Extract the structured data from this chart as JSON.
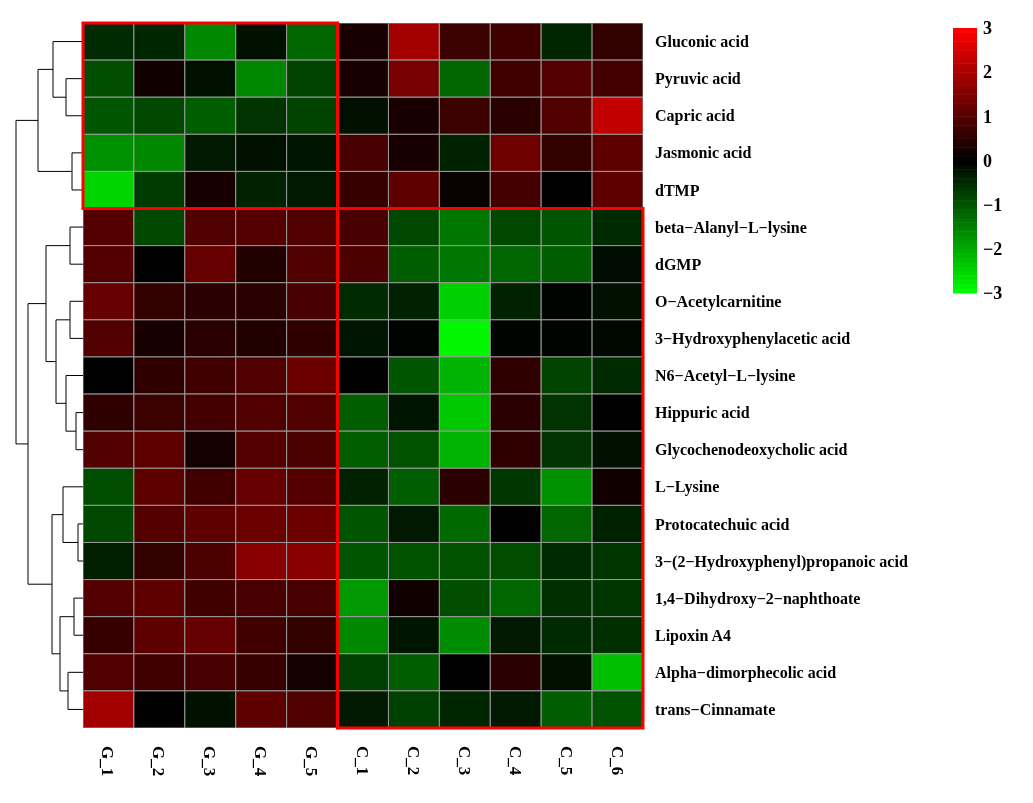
{
  "chart_data": {
    "type": "heatmap",
    "categories": [
      "G_1",
      "G_2",
      "G_3",
      "G_4",
      "G_5",
      "C_1",
      "C_2",
      "C_3",
      "C_4",
      "C_5",
      "C_6"
    ],
    "y_categories": [
      "Gluconic acid",
      "Pyruvic acid",
      "Capric acid",
      "Jasmonic acid",
      "dTMP",
      "beta−Alanyl−L−lysine",
      "dGMP",
      "O−Acetylcarnitine",
      "3−Hydroxyphenylacetic acid",
      "N6−Acetyl−L−lysine",
      "Hippuric acid",
      "Glycochenodeoxycholic acid",
      "L−Lysine",
      "Protocatechuic acid",
      "3−(2−Hydroxyphenyl)propanoic acid",
      "1,4−Dihydroxy−2−naphthoate",
      "Lipoxin A4",
      "Alpha−dimorphecolic acid",
      "trans−Cinnamate"
    ],
    "cells": [
      [
        -0.5,
        -0.45,
        -1.6,
        -0.2,
        -1.2,
        0.3,
        1.9,
        0.7,
        0.75,
        -0.45,
        0.6
      ],
      [
        -0.9,
        0.2,
        -0.2,
        -1.6,
        -0.8,
        0.3,
        1.4,
        -1.2,
        0.75,
        1.0,
        0.8
      ],
      [
        -1.0,
        -0.85,
        -1.1,
        -0.6,
        -0.8,
        -0.2,
        0.3,
        0.7,
        0.5,
        0.95,
        2.3
      ],
      [
        -1.7,
        -1.6,
        -0.3,
        -0.2,
        -0.25,
        0.85,
        0.3,
        -0.4,
        1.3,
        0.6,
        1.1
      ],
      [
        -2.5,
        -0.7,
        0.3,
        -0.4,
        -0.3,
        0.65,
        1.1,
        0.1,
        0.8,
        0.0,
        1.1
      ],
      [
        1.0,
        -0.85,
        0.95,
        1.0,
        0.95,
        0.85,
        -0.85,
        -1.4,
        -0.85,
        -1.0,
        -0.5
      ],
      [
        1.0,
        0.0,
        1.2,
        0.4,
        0.95,
        0.9,
        -1.1,
        -1.4,
        -1.2,
        -1.1,
        -0.15
      ],
      [
        1.2,
        0.6,
        0.5,
        0.5,
        0.85,
        -0.5,
        -0.4,
        -2.45,
        -0.4,
        -0.05,
        -0.2
      ],
      [
        0.95,
        0.3,
        0.5,
        0.4,
        0.55,
        -0.25,
        -0.05,
        -2.9,
        -0.05,
        -0.05,
        -0.1
      ],
      [
        0.0,
        0.55,
        0.75,
        0.95,
        1.25,
        0.0,
        -1.0,
        -2.1,
        0.55,
        -0.8,
        -0.5
      ],
      [
        0.55,
        0.7,
        0.8,
        0.95,
        0.95,
        -1.1,
        -0.25,
        -2.35,
        0.5,
        -0.6,
        0.0
      ],
      [
        0.95,
        1.1,
        0.25,
        1.0,
        0.9,
        -1.1,
        -0.95,
        -2.1,
        0.55,
        -0.6,
        -0.2
      ],
      [
        -0.9,
        1.1,
        0.75,
        1.2,
        1.0,
        -0.4,
        -1.1,
        0.5,
        -0.65,
        -1.7,
        0.2
      ],
      [
        -0.85,
        1.0,
        1.1,
        1.25,
        1.25,
        -1.0,
        -0.3,
        -1.25,
        0.0,
        -1.2,
        -0.4
      ],
      [
        -0.35,
        0.6,
        0.9,
        1.6,
        1.6,
        -1.0,
        -0.95,
        -0.95,
        -0.9,
        -0.5,
        -0.65
      ],
      [
        1.0,
        1.1,
        0.75,
        0.85,
        0.85,
        -1.8,
        0.2,
        -0.9,
        -1.2,
        -0.55,
        -0.65
      ],
      [
        0.65,
        1.1,
        1.2,
        0.75,
        0.6,
        -1.6,
        -0.25,
        -1.65,
        -0.3,
        -0.5,
        -0.55
      ],
      [
        0.95,
        0.75,
        0.85,
        0.65,
        0.25,
        -0.75,
        -1.1,
        0.0,
        0.5,
        -0.2,
        -2.25
      ],
      [
        1.9,
        0.0,
        -0.2,
        1.1,
        0.95,
        -0.3,
        -0.75,
        -0.45,
        -0.3,
        -1.1,
        -0.95
      ]
    ],
    "clim": [
      -3,
      3
    ],
    "cticks": [
      -3,
      -2,
      -1,
      0,
      1,
      2,
      3
    ]
  }
}
